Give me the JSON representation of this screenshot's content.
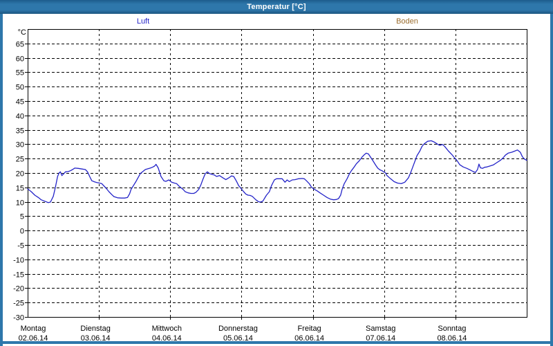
{
  "window": {
    "title": "Temperatur [°C]"
  },
  "legend": {
    "items": [
      {
        "label": "Luft",
        "color": "#2323c8"
      },
      {
        "label": "Boden",
        "color": "#9b6d2e"
      }
    ]
  },
  "chart_data": {
    "type": "line",
    "title": "Temperatur [°C]",
    "unit": "°C",
    "ylim": [
      -30,
      70
    ],
    "ytick_step": 5,
    "yticks": [
      65,
      60,
      55,
      50,
      45,
      40,
      35,
      30,
      25,
      20,
      15,
      10,
      5,
      0,
      -5,
      -10,
      -15,
      -20,
      -25,
      -30
    ],
    "grid": "dashed",
    "legend_position": "top",
    "x_axis": {
      "days": [
        {
          "label": "Montag",
          "date": "02.06.14"
        },
        {
          "label": "Dienstag",
          "date": "03.06.14"
        },
        {
          "label": "Mittwoch",
          "date": "04.06.14"
        },
        {
          "label": "Donnerstag",
          "date": "05.06.14"
        },
        {
          "label": "Freitag",
          "date": "06.06.14"
        },
        {
          "label": "Samstag",
          "date": "07.06.14"
        },
        {
          "label": "Sonntag",
          "date": "08.06.14"
        }
      ]
    },
    "series": [
      {
        "name": "Luft",
        "color": "#2323c8",
        "x_unit": "days_since_02_06_14",
        "points": [
          [
            0.0,
            14.5
          ],
          [
            0.05,
            13.5
          ],
          [
            0.1,
            12.3
          ],
          [
            0.15,
            11.5
          ],
          [
            0.19,
            10.7
          ],
          [
            0.24,
            10.2
          ],
          [
            0.29,
            9.7
          ],
          [
            0.32,
            9.9
          ],
          [
            0.36,
            11.9
          ],
          [
            0.39,
            15.1
          ],
          [
            0.42,
            18.8
          ],
          [
            0.44,
            20.0
          ],
          [
            0.46,
            20.4
          ],
          [
            0.48,
            19.1
          ],
          [
            0.5,
            19.6
          ],
          [
            0.53,
            20.4
          ],
          [
            0.57,
            20.5
          ],
          [
            0.6,
            20.8
          ],
          [
            0.63,
            21.2
          ],
          [
            0.66,
            21.7
          ],
          [
            0.71,
            21.6
          ],
          [
            0.76,
            21.4
          ],
          [
            0.81,
            21.2
          ],
          [
            0.84,
            20.4
          ],
          [
            0.87,
            18.8
          ],
          [
            0.9,
            17.3
          ],
          [
            0.94,
            16.9
          ],
          [
            0.97,
            16.7
          ],
          [
            1.01,
            16.5
          ],
          [
            1.04,
            16.3
          ],
          [
            1.1,
            14.7
          ],
          [
            1.14,
            13.5
          ],
          [
            1.18,
            12.5
          ],
          [
            1.21,
            11.8
          ],
          [
            1.26,
            11.4
          ],
          [
            1.31,
            11.3
          ],
          [
            1.36,
            11.3
          ],
          [
            1.4,
            11.5
          ],
          [
            1.43,
            12.8
          ],
          [
            1.45,
            14.3
          ],
          [
            1.52,
            17.1
          ],
          [
            1.58,
            19.8
          ],
          [
            1.62,
            20.6
          ],
          [
            1.65,
            21.2
          ],
          [
            1.69,
            21.5
          ],
          [
            1.72,
            21.7
          ],
          [
            1.75,
            22.0
          ],
          [
            1.78,
            22.4
          ],
          [
            1.8,
            23.0
          ],
          [
            1.83,
            21.8
          ],
          [
            1.87,
            18.8
          ],
          [
            1.91,
            17.3
          ],
          [
            1.94,
            17.1
          ],
          [
            1.98,
            17.6
          ],
          [
            2.02,
            16.8
          ],
          [
            2.06,
            16.5
          ],
          [
            2.09,
            16.3
          ],
          [
            2.12,
            15.5
          ],
          [
            2.15,
            14.9
          ],
          [
            2.18,
            14.3
          ],
          [
            2.21,
            13.5
          ],
          [
            2.25,
            13.1
          ],
          [
            2.29,
            12.9
          ],
          [
            2.33,
            12.9
          ],
          [
            2.36,
            13.3
          ],
          [
            2.4,
            14.3
          ],
          [
            2.43,
            15.9
          ],
          [
            2.46,
            17.9
          ],
          [
            2.49,
            19.7
          ],
          [
            2.52,
            20.4
          ],
          [
            2.55,
            19.8
          ],
          [
            2.59,
            19.5
          ],
          [
            2.62,
            19.3
          ],
          [
            2.65,
            18.8
          ],
          [
            2.69,
            19.1
          ],
          [
            2.74,
            18.3
          ],
          [
            2.78,
            17.7
          ],
          [
            2.82,
            18.3
          ],
          [
            2.86,
            19.0
          ],
          [
            2.89,
            18.8
          ],
          [
            2.93,
            17.1
          ],
          [
            2.96,
            15.6
          ],
          [
            2.99,
            14.7
          ],
          [
            3.03,
            13.5
          ],
          [
            3.06,
            12.7
          ],
          [
            3.09,
            12.3
          ],
          [
            3.12,
            12.2
          ],
          [
            3.15,
            11.9
          ],
          [
            3.2,
            10.7
          ],
          [
            3.24,
            10.0
          ],
          [
            3.27,
            9.9
          ],
          [
            3.3,
            10.3
          ],
          [
            3.35,
            12.3
          ],
          [
            3.39,
            13.5
          ],
          [
            3.42,
            15.6
          ],
          [
            3.46,
            17.6
          ],
          [
            3.49,
            18.0
          ],
          [
            3.53,
            18.0
          ],
          [
            3.57,
            18.0
          ],
          [
            3.61,
            16.8
          ],
          [
            3.64,
            17.6
          ],
          [
            3.67,
            17.0
          ],
          [
            3.71,
            17.6
          ],
          [
            3.75,
            17.7
          ],
          [
            3.8,
            18.0
          ],
          [
            3.85,
            18.1
          ],
          [
            3.88,
            18.0
          ],
          [
            3.91,
            17.3
          ],
          [
            3.95,
            16.3
          ],
          [
            3.98,
            15.1
          ],
          [
            4.01,
            14.5
          ],
          [
            4.06,
            13.8
          ],
          [
            4.1,
            13.1
          ],
          [
            4.15,
            12.3
          ],
          [
            4.2,
            11.5
          ],
          [
            4.25,
            10.9
          ],
          [
            4.29,
            10.7
          ],
          [
            4.33,
            10.8
          ],
          [
            4.36,
            11.1
          ],
          [
            4.39,
            12.3
          ],
          [
            4.41,
            14.3
          ],
          [
            4.44,
            16.3
          ],
          [
            4.48,
            18.0
          ],
          [
            4.51,
            19.6
          ],
          [
            4.54,
            20.8
          ],
          [
            4.58,
            22.1
          ],
          [
            4.61,
            23.2
          ],
          [
            4.65,
            24.2
          ],
          [
            4.69,
            25.5
          ],
          [
            4.72,
            26.3
          ],
          [
            4.75,
            26.9
          ],
          [
            4.78,
            26.6
          ],
          [
            4.81,
            25.5
          ],
          [
            4.85,
            24.0
          ],
          [
            4.88,
            22.8
          ],
          [
            4.91,
            21.7
          ],
          [
            4.94,
            21.1
          ],
          [
            4.97,
            20.8
          ],
          [
            5.02,
            20.0
          ],
          [
            5.04,
            19.1
          ],
          [
            5.09,
            18.0
          ],
          [
            5.14,
            17.0
          ],
          [
            5.19,
            16.5
          ],
          [
            5.24,
            16.3
          ],
          [
            5.29,
            16.8
          ],
          [
            5.34,
            18.3
          ],
          [
            5.37,
            20.0
          ],
          [
            5.4,
            22.0
          ],
          [
            5.43,
            24.0
          ],
          [
            5.46,
            26.0
          ],
          [
            5.5,
            27.6
          ],
          [
            5.53,
            29.2
          ],
          [
            5.56,
            30.1
          ],
          [
            5.61,
            31.0
          ],
          [
            5.66,
            31.2
          ],
          [
            5.7,
            30.8
          ],
          [
            5.75,
            30.0
          ],
          [
            5.78,
            29.6
          ],
          [
            5.82,
            29.9
          ],
          [
            5.85,
            29.2
          ],
          [
            5.9,
            27.7
          ],
          [
            5.95,
            26.4
          ],
          [
            5.99,
            25.2
          ],
          [
            6.02,
            24.4
          ],
          [
            6.06,
            22.9
          ],
          [
            6.11,
            22.1
          ],
          [
            6.16,
            21.6
          ],
          [
            6.21,
            21.0
          ],
          [
            6.25,
            20.5
          ],
          [
            6.28,
            20.2
          ],
          [
            6.31,
            21.2
          ],
          [
            6.33,
            23.1
          ],
          [
            6.35,
            21.8
          ],
          [
            6.38,
            21.6
          ],
          [
            6.41,
            22.0
          ],
          [
            6.44,
            22.1
          ],
          [
            6.48,
            22.4
          ],
          [
            6.53,
            22.8
          ],
          [
            6.58,
            23.6
          ],
          [
            6.63,
            24.4
          ],
          [
            6.67,
            25.3
          ],
          [
            6.7,
            26.2
          ],
          [
            6.74,
            26.9
          ],
          [
            6.79,
            27.2
          ],
          [
            6.83,
            27.6
          ],
          [
            6.87,
            28.0
          ],
          [
            6.91,
            27.2
          ],
          [
            6.94,
            25.6
          ],
          [
            6.97,
            24.8
          ],
          [
            7.0,
            24.4
          ]
        ]
      },
      {
        "name": "Boden",
        "color": "#9b6d2e",
        "x_unit": "days_since_02_06_14",
        "points": []
      }
    ]
  },
  "colors": {
    "titlebar": "#2e77ab",
    "window_border": "#2e77ab",
    "plot_frame": "#000000",
    "grid": "#000000",
    "background": "#ffffff"
  }
}
